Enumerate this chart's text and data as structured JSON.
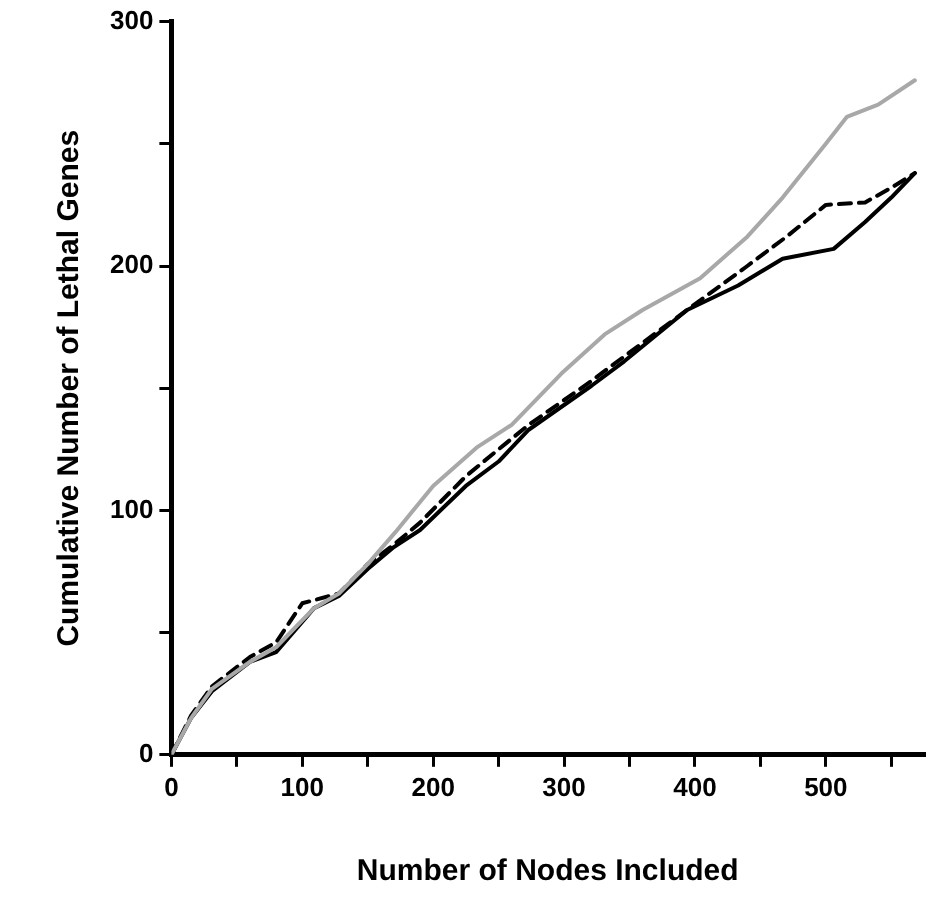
{
  "chart_data": {
    "type": "line",
    "xlabel": "Number of Nodes Included",
    "ylabel": "Cumulative Number of Lethal Genes",
    "xlim": [
      0,
      575
    ],
    "ylim": [
      0,
      300
    ],
    "xticks": [
      0,
      {
        "value": 50,
        "label": null
      },
      100,
      {
        "value": 150,
        "label": null
      },
      200,
      {
        "value": 250,
        "label": null
      },
      300,
      {
        "value": 350,
        "label": null
      },
      400,
      {
        "value": 450,
        "label": null
      },
      500,
      {
        "value": 550,
        "label": null
      }
    ],
    "yticks": [
      0,
      {
        "value": 50,
        "label": null
      },
      100,
      {
        "value": 150,
        "label": null
      },
      200,
      {
        "value": 250,
        "label": null
      },
      300
    ],
    "grid": false,
    "legend": false,
    "marker": "none",
    "series": [
      {
        "color": "#a8a8a8",
        "line_style": "solid",
        "x": [
          0,
          15,
          31,
          60,
          80,
          109,
          128,
          150,
          171,
          200,
          234,
          260,
          298,
          331,
          360,
          404,
          440,
          467,
          500,
          516,
          540,
          568
        ],
        "values": [
          0,
          15,
          27,
          38,
          44,
          60,
          66,
          78,
          91,
          110,
          126,
          135,
          156,
          172,
          182,
          195,
          212,
          228,
          250,
          261,
          266,
          276
        ]
      },
      {
        "color": "#000000",
        "line_style": "solid",
        "x": [
          0,
          15,
          31,
          60,
          80,
          109,
          128,
          150,
          170,
          190,
          225,
          250,
          273,
          321,
          346,
          394,
          433,
          467,
          506,
          530,
          550,
          568
        ],
        "values": [
          0,
          15,
          26,
          38,
          42,
          60,
          65,
          76,
          85,
          92,
          110,
          120,
          133,
          151,
          161,
          182,
          192,
          203,
          207,
          218,
          228,
          238
        ]
      },
      {
        "color": "#000000",
        "line_style": "dashed",
        "x": [
          0,
          15,
          31,
          60,
          80,
          100,
          128,
          150,
          170,
          190,
          225,
          250,
          273,
          321,
          346,
          394,
          440,
          470,
          500,
          530,
          550,
          568
        ],
        "values": [
          0,
          16,
          28,
          40,
          46,
          62,
          66,
          78,
          86,
          95,
          114,
          125,
          135,
          153,
          163,
          182,
          200,
          212,
          225,
          226,
          232,
          238
        ]
      }
    ]
  }
}
